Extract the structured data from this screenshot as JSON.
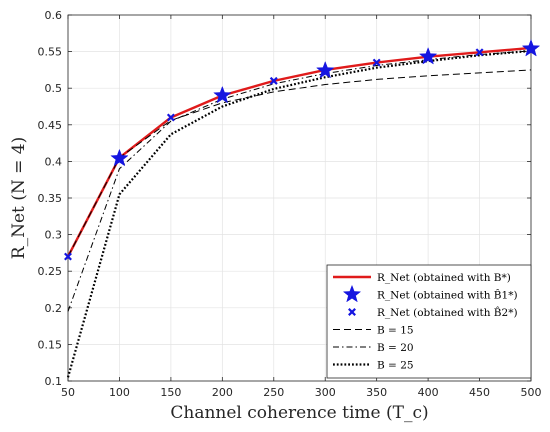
{
  "chart_data": {
    "type": "line",
    "xlabel": "Channel coherence time (T_c)",
    "ylabel": "R_Net (N = 4)",
    "xlim": [
      50,
      500
    ],
    "ylim": [
      0.1,
      0.6
    ],
    "xticks": [
      50,
      100,
      150,
      200,
      250,
      300,
      350,
      400,
      450,
      500
    ],
    "yticks": [
      0.1,
      0.15,
      0.2,
      0.25,
      0.3,
      0.35,
      0.4,
      0.45,
      0.5,
      0.55,
      0.6
    ],
    "xtick_labels": [
      "50",
      "100",
      "150",
      "200",
      "250",
      "300",
      "350",
      "400",
      "450",
      "500"
    ],
    "ytick_labels": [
      "0.1",
      "0.15",
      "0.2",
      "0.25",
      "0.3",
      "0.35",
      "0.4",
      "0.45",
      "0.5",
      "0.55",
      "0.6"
    ],
    "grid": true,
    "legend_position": "bottom-right",
    "series": [
      {
        "name": "R_Net (obtained with B*)",
        "style": "solid-line",
        "color": "#e01b1b",
        "x": [
          50,
          100,
          150,
          200,
          250,
          300,
          350,
          400,
          450,
          500
        ],
        "y": [
          0.27,
          0.405,
          0.46,
          0.49,
          0.51,
          0.525,
          0.535,
          0.543,
          0.549,
          0.555
        ]
      },
      {
        "name": "R_Net (obtained with B̂1*)",
        "style": "star-marker",
        "color": "#1515e0",
        "x": [
          100,
          200,
          300,
          400,
          500
        ],
        "y": [
          0.404,
          0.49,
          0.524,
          0.543,
          0.554
        ]
      },
      {
        "name": "R_Net (obtained with B̂2*)",
        "style": "x-marker",
        "color": "#1515e0",
        "x": [
          50,
          150,
          250,
          350,
          450
        ],
        "y": [
          0.27,
          0.46,
          0.51,
          0.535,
          0.549
        ]
      },
      {
        "name": "B = 15",
        "style": "dashed",
        "color": "#000000",
        "x": [
          50,
          100,
          150,
          200,
          250,
          300,
          350,
          400,
          450,
          500
        ],
        "y": [
          0.27,
          0.405,
          0.456,
          0.48,
          0.495,
          0.505,
          0.512,
          0.517,
          0.521,
          0.525
        ]
      },
      {
        "name": "B = 20",
        "style": "dashdot",
        "color": "#000000",
        "x": [
          50,
          100,
          150,
          200,
          250,
          300,
          350,
          400,
          450,
          500
        ],
        "y": [
          0.195,
          0.39,
          0.455,
          0.485,
          0.506,
          0.52,
          0.531,
          0.539,
          0.546,
          0.551
        ]
      },
      {
        "name": "B = 25",
        "style": "dotted",
        "color": "#000000",
        "x": [
          50,
          100,
          150,
          200,
          250,
          300,
          350,
          400,
          450,
          500
        ],
        "y": [
          0.105,
          0.355,
          0.437,
          0.475,
          0.499,
          0.515,
          0.528,
          0.537,
          0.545,
          0.551
        ]
      }
    ]
  }
}
